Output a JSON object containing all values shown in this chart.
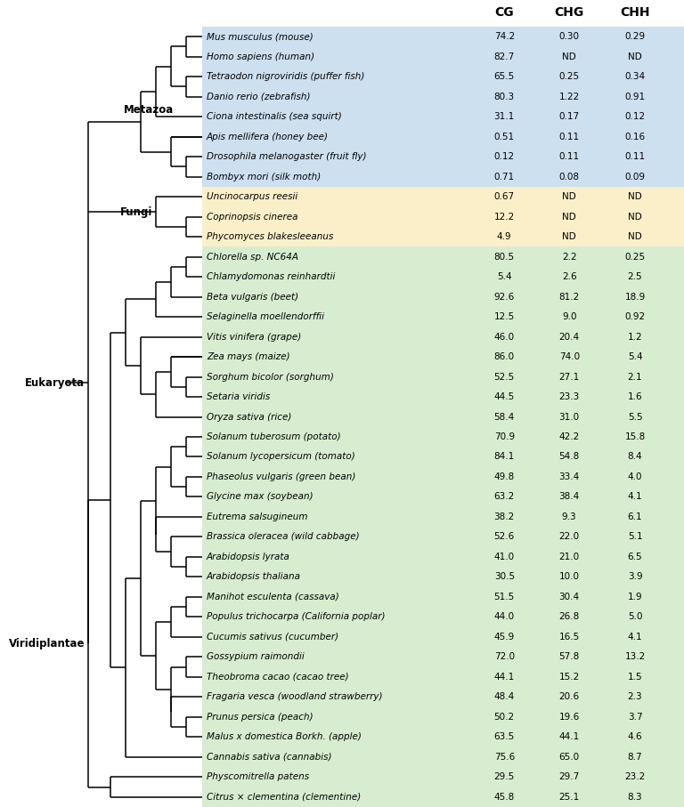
{
  "species": [
    {
      "name": "Mus musculus (mouse)",
      "CG": "74.2",
      "CHG": "0.30",
      "CHH": "0.29",
      "bg": "blue"
    },
    {
      "name": "Homo sapiens (human)",
      "CG": "82.7",
      "CHG": "ND",
      "CHH": "ND",
      "bg": "blue"
    },
    {
      "name": "Tetraodon nigroviridis (puffer fish)",
      "CG": "65.5",
      "CHG": "0.25",
      "CHH": "0.34",
      "bg": "blue"
    },
    {
      "name": "Danio rerio (zebrafish)",
      "CG": "80.3",
      "CHG": "1.22",
      "CHH": "0.91",
      "bg": "blue"
    },
    {
      "name": "Ciona intestinalis (sea squirt)",
      "CG": "31.1",
      "CHG": "0.17",
      "CHH": "0.12",
      "bg": "blue"
    },
    {
      "name": "Apis mellifera (honey bee)",
      "CG": "0.51",
      "CHG": "0.11",
      "CHH": "0.16",
      "bg": "blue"
    },
    {
      "name": "Drosophila melanogaster (fruit fly)",
      "CG": "0.12",
      "CHG": "0.11",
      "CHH": "0.11",
      "bg": "blue"
    },
    {
      "name": "Bombyx mori (silk moth)",
      "CG": "0.71",
      "CHG": "0.08",
      "CHH": "0.09",
      "bg": "blue"
    },
    {
      "name": "Uncinocarpus reesii",
      "CG": "0.67",
      "CHG": "ND",
      "CHH": "ND",
      "bg": "yellow"
    },
    {
      "name": "Coprinopsis cinerea",
      "CG": "12.2",
      "CHG": "ND",
      "CHH": "ND",
      "bg": "yellow"
    },
    {
      "name": "Phycomyces blakesleeanus",
      "CG": "4.9",
      "CHG": "ND",
      "CHH": "ND",
      "bg": "yellow"
    },
    {
      "name": "Chlorella sp. NC64A",
      "CG": "80.5",
      "CHG": "2.2",
      "CHH": "0.25",
      "bg": "green"
    },
    {
      "name": "Chlamydomonas reinhardtii",
      "CG": "5.4",
      "CHG": "2.6",
      "CHH": "2.5",
      "bg": "green"
    },
    {
      "name": "Beta vulgaris (beet)",
      "CG": "92.6",
      "CHG": "81.2",
      "CHH": "18.9",
      "bg": "green"
    },
    {
      "name": "Selaginella moellendorffii",
      "CG": "12.5",
      "CHG": "9.0",
      "CHH": "0.92",
      "bg": "green"
    },
    {
      "name": "Vitis vinifera (grape)",
      "CG": "46.0",
      "CHG": "20.4",
      "CHH": "1.2",
      "bg": "green"
    },
    {
      "name": "Zea mays (maize)",
      "CG": "86.0",
      "CHG": "74.0",
      "CHH": "5.4",
      "bg": "green"
    },
    {
      "name": "Sorghum bicolor (sorghum)",
      "CG": "52.5",
      "CHG": "27.1",
      "CHH": "2.1",
      "bg": "green"
    },
    {
      "name": "Setaria viridis",
      "CG": "44.5",
      "CHG": "23.3",
      "CHH": "1.6",
      "bg": "green"
    },
    {
      "name": "Oryza sativa (rice)",
      "CG": "58.4",
      "CHG": "31.0",
      "CHH": "5.5",
      "bg": "green"
    },
    {
      "name": "Solanum tuberosum (potato)",
      "CG": "70.9",
      "CHG": "42.2",
      "CHH": "15.8",
      "bg": "green"
    },
    {
      "name": "Solanum lycopersicum (tomato)",
      "CG": "84.1",
      "CHG": "54.8",
      "CHH": "8.4",
      "bg": "green"
    },
    {
      "name": "Phaseolus vulgaris (green bean)",
      "CG": "49.8",
      "CHG": "33.4",
      "CHH": "4.0",
      "bg": "green"
    },
    {
      "name": "Glycine max (soybean)",
      "CG": "63.2",
      "CHG": "38.4",
      "CHH": "4.1",
      "bg": "green"
    },
    {
      "name": "Eutrema salsugineum",
      "CG": "38.2",
      "CHG": "9.3",
      "CHH": "6.1",
      "bg": "green"
    },
    {
      "name": "Brassica oleracea (wild cabbage)",
      "CG": "52.6",
      "CHG": "22.0",
      "CHH": "5.1",
      "bg": "green"
    },
    {
      "name": "Arabidopsis lyrata",
      "CG": "41.0",
      "CHG": "21.0",
      "CHH": "6.5",
      "bg": "green"
    },
    {
      "name": "Arabidopsis thaliana",
      "CG": "30.5",
      "CHG": "10.0",
      "CHH": "3.9",
      "bg": "green"
    },
    {
      "name": "Manihot esculenta (cassava)",
      "CG": "51.5",
      "CHG": "30.4",
      "CHH": "1.9",
      "bg": "green"
    },
    {
      "name": "Populus trichocarpa (California poplar)",
      "CG": "44.0",
      "CHG": "26.8",
      "CHH": "5.0",
      "bg": "green"
    },
    {
      "name": "Cucumis sativus (cucumber)",
      "CG": "45.9",
      "CHG": "16.5",
      "CHH": "4.1",
      "bg": "green"
    },
    {
      "name": "Gossypium raimondii",
      "CG": "72.0",
      "CHG": "57.8",
      "CHH": "13.2",
      "bg": "green"
    },
    {
      "name": "Theobroma cacao (cacao tree)",
      "CG": "44.1",
      "CHG": "15.2",
      "CHH": "1.5",
      "bg": "green"
    },
    {
      "name": "Fragaria vesca (woodland strawberry)",
      "CG": "48.4",
      "CHG": "20.6",
      "CHH": "2.3",
      "bg": "green"
    },
    {
      "name": "Prunus persica (peach)",
      "CG": "50.2",
      "CHG": "19.6",
      "CHH": "3.7",
      "bg": "green"
    },
    {
      "name": "Malus x domestica Borkh. (apple)",
      "CG": "63.5",
      "CHG": "44.1",
      "CHH": "4.6",
      "bg": "green"
    },
    {
      "name": "Cannabis sativa (cannabis)",
      "CG": "75.6",
      "CHG": "65.0",
      "CHH": "8.7",
      "bg": "green"
    },
    {
      "name": "Physcomitrella patens",
      "CG": "29.5",
      "CHG": "29.7",
      "CHH": "23.2",
      "bg": "green"
    },
    {
      "name": "Citrus × clementina (clementine)",
      "CG": "45.8",
      "CHG": "25.1",
      "CHH": "8.3",
      "bg": "green"
    }
  ],
  "bg_blue": "#cce0f0",
  "bg_yellow": "#faefc8",
  "bg_green": "#d8edcf",
  "header_CG": "CG",
  "header_CHG": "CHG",
  "header_CHH": "CHH",
  "label_eukaryota": "Eukaryota",
  "label_metazoa": "Metazoa",
  "label_fungi": "Fungi",
  "label_viridiplantae": "Viridiplantae",
  "fig_width": 7.68,
  "fig_height": 9.07,
  "dpi": 100
}
